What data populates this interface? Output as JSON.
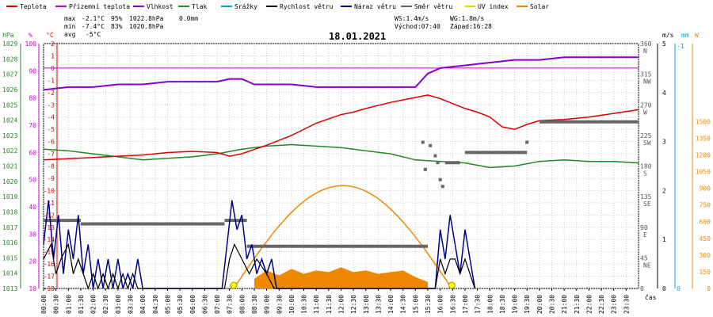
{
  "chart_data": {
    "type": "line",
    "title": "18.01.2021",
    "legend": [
      {
        "label": "Teplota",
        "color": "#dd0000"
      },
      {
        "label": "Přízemní teplota",
        "color": "#cc00cc"
      },
      {
        "label": "Vlhkost",
        "color": "#8800cc"
      },
      {
        "label": "Tlak",
        "color": "#228822"
      },
      {
        "label": "Srážky",
        "color": "#00aacc"
      },
      {
        "label": "Rychlost větru",
        "color": "#000000"
      },
      {
        "label": "Náraz větru",
        "color": "#000088"
      },
      {
        "label": "Směr větru",
        "color": "#666666"
      },
      {
        "label": "UV index",
        "color": "#dddd00"
      },
      {
        "label": "Solar",
        "color": "#ee8800"
      }
    ],
    "stats": {
      "max_label": "max",
      "max_temp": "-2.1°C",
      "max_hum": "95%",
      "max_press": "1022.8hPa",
      "max_rain": "0.0mm",
      "min_label": "min",
      "min_temp": "-7.4°C",
      "min_hum": "83%",
      "min_press": "1020.8hPa",
      "avg_label": "avg",
      "avg_temp": "-5°C",
      "ws": "WS:1.4m/s",
      "wg": "WG:1.8m/s",
      "sunrise": "Východ:07:40",
      "sunset": "Západ:16:28"
    },
    "left_axes": [
      {
        "unit": "hPa",
        "color": "#228822",
        "ticks": [
          "1029",
          "1028",
          "1027",
          "1026",
          "1025",
          "1024",
          "1023",
          "1022",
          "1021",
          "1020",
          "1019",
          "1018",
          "1017",
          "1016",
          "1015",
          "1014",
          "1013"
        ]
      },
      {
        "unit": "%",
        "color": "#cc00cc",
        "ticks": [
          "100",
          "90",
          "80",
          "70",
          "60",
          "50",
          "40",
          "30",
          "20",
          "10"
        ]
      },
      {
        "unit": "°C",
        "color": "#dd0000",
        "ticks": [
          "2",
          "1",
          "0",
          "-1",
          "-2",
          "-3",
          "-4",
          "-5",
          "-6",
          "-7",
          "-8",
          "-9",
          "-10",
          "-11",
          "-12",
          "-13",
          "-14",
          "-15",
          "-16",
          "-17",
          "-18"
        ]
      }
    ],
    "right_axes": [
      {
        "unit": "",
        "ticks": [
          "360 N",
          "315 NW",
          "270 W",
          "225 SW",
          "180 S",
          "135 SE",
          "90 E",
          "45 NE",
          "0"
        ]
      },
      {
        "unit": "m/s",
        "ticks": [
          "5",
          "4",
          "3",
          "2",
          "1",
          "0"
        ]
      },
      {
        "unit": "mm",
        "ticks": [
          "-1",
          "0"
        ]
      },
      {
        "unit": "W",
        "ticks": [
          "1500",
          "1350",
          "1200",
          "1050",
          "900",
          "750",
          "600",
          "450",
          "300",
          "150",
          "0"
        ]
      }
    ],
    "x_ticks": [
      "00:00",
      "00:30",
      "01:00",
      "01:30",
      "02:00",
      "02:30",
      "03:00",
      "03:30",
      "04:00",
      "04:30",
      "05:00",
      "05:30",
      "06:00",
      "06:30",
      "07:00",
      "07:30",
      "08:00",
      "08:30",
      "09:00",
      "09:30",
      "10:00",
      "10:30",
      "11:00",
      "11:30",
      "12:00",
      "12:30",
      "13:00",
      "13:30",
      "14:00",
      "14:30",
      "15:00",
      "15:30",
      "16:00",
      "16:30",
      "17:00",
      "17:30",
      "18:00",
      "18:30",
      "19:00",
      "19:30",
      "20:00",
      "20:30",
      "21:00",
      "21:30",
      "22:00",
      "22:30",
      "23:00",
      "23:30"
    ],
    "x_unit": "čas",
    "xlim": [
      0,
      24
    ],
    "grid": true,
    "temperature": {
      "name": "Teplota",
      "color": "#dd0000",
      "ylim": [
        -18,
        2
      ],
      "x": [
        0,
        1,
        2,
        3,
        4,
        5,
        6,
        7,
        7.5,
        8,
        9,
        10,
        11,
        12,
        12.5,
        13,
        14,
        15,
        15.5,
        16,
        16.5,
        17,
        17.5,
        18,
        18.5,
        19,
        19.5,
        20,
        21,
        22,
        23,
        24
      ],
      "y": [
        -7.5,
        -7.4,
        -7.3,
        -7.2,
        -7.1,
        -6.9,
        -6.8,
        -6.9,
        -7.2,
        -7.0,
        -6.3,
        -5.5,
        -4.5,
        -3.8,
        -3.6,
        -3.3,
        -2.8,
        -2.4,
        -2.2,
        -2.5,
        -2.9,
        -3.3,
        -3.6,
        -4.0,
        -4.8,
        -5.0,
        -4.6,
        -4.3,
        -4.2,
        -4.0,
        -3.7,
        -3.4
      ]
    },
    "ground_threshold": {
      "name": "Přízemní teplota",
      "color": "#cc00cc",
      "value_c": 0
    },
    "humidity": {
      "name": "Vlhkost",
      "color": "#8800cc",
      "ylim": [
        10,
        100
      ],
      "x": [
        0,
        1,
        2,
        3,
        4,
        5,
        6,
        7,
        7.5,
        8,
        8.5,
        9,
        10,
        11,
        12,
        13,
        14,
        15,
        15.2,
        15.5,
        16,
        17,
        18,
        19,
        20,
        21,
        22,
        23,
        24
      ],
      "y": [
        83,
        84,
        84,
        85,
        85,
        86,
        86,
        86,
        87,
        87,
        85,
        85,
        85,
        84,
        84,
        84,
        84,
        84,
        86,
        89,
        91,
        92,
        93,
        94,
        94,
        95,
        95,
        95,
        95
      ]
    },
    "pressure": {
      "name": "Tlak",
      "color": "#228822",
      "ylim": [
        1013,
        1029
      ],
      "x": [
        0,
        1,
        2,
        3,
        4,
        5,
        6,
        7,
        8,
        9,
        10,
        11,
        12,
        13,
        14,
        15,
        16,
        17,
        18,
        19,
        20,
        21,
        22,
        23,
        24
      ],
      "y": [
        1022.1,
        1022.0,
        1021.8,
        1021.6,
        1021.4,
        1021.5,
        1021.6,
        1021.8,
        1022.1,
        1022.3,
        1022.4,
        1022.3,
        1022.2,
        1022.0,
        1021.8,
        1021.4,
        1021.3,
        1021.2,
        1020.9,
        1021.0,
        1021.3,
        1021.4,
        1021.3,
        1021.3,
        1021.2
      ]
    },
    "wind_speed": {
      "name": "Rychlost větru",
      "color": "#000000",
      "ylim": [
        0,
        5
      ],
      "x": [
        0,
        0.3,
        0.5,
        0.7,
        1,
        1.2,
        1.4,
        1.6,
        1.8,
        2,
        2.2,
        2.4,
        2.6,
        2.8,
        3,
        3.2,
        3.4,
        3.6,
        3.8,
        4,
        7.3,
        7.5,
        7.7,
        8,
        8.3,
        8.6,
        9,
        9.3,
        15.8,
        16,
        16.2,
        16.4,
        16.6,
        16.8,
        17,
        17.2,
        17.4
      ],
      "y": [
        0.6,
        0.9,
        0.3,
        0.6,
        0.9,
        0.3,
        0.6,
        0.3,
        0,
        0.3,
        0,
        0.3,
        0,
        0.3,
        0,
        0.3,
        0,
        0.3,
        0,
        0,
        0,
        0.6,
        0.9,
        0.6,
        0.3,
        0.6,
        0.3,
        0,
        0,
        0.6,
        0.3,
        0.6,
        0.6,
        0.3,
        0.6,
        0.3,
        0
      ]
    },
    "wind_gust": {
      "name": "Náraz větru",
      "color": "#000088",
      "ylim": [
        0,
        5
      ],
      "x": [
        0,
        0.2,
        0.4,
        0.6,
        0.8,
        1,
        1.2,
        1.4,
        1.6,
        1.8,
        2,
        2.2,
        2.4,
        2.6,
        2.8,
        3,
        3.2,
        3.4,
        3.6,
        3.8,
        4,
        7.2,
        7.4,
        7.6,
        7.8,
        8,
        8.2,
        8.4,
        8.6,
        8.8,
        9,
        9.2,
        9.4,
        15.8,
        16,
        16.2,
        16.4,
        16.6,
        16.8,
        17,
        17.2,
        17.4
      ],
      "y": [
        0.9,
        1.8,
        0.6,
        1.5,
        0.3,
        1.2,
        0.6,
        1.5,
        0.3,
        0.9,
        0,
        0.6,
        0,
        0.6,
        0,
        0.6,
        0,
        0.3,
        0,
        0.6,
        0,
        0,
        0.9,
        1.8,
        1.2,
        1.5,
        0.6,
        0.9,
        0.3,
        0.6,
        0.3,
        0.6,
        0,
        0,
        1.2,
        0.6,
        1.5,
        0.9,
        0.3,
        1.2,
        0.6,
        0
      ]
    },
    "wind_direction": {
      "name": "Směr větru",
      "color": "#666666",
      "ylim": [
        0,
        360
      ],
      "segments": [
        {
          "x0": 0,
          "x1": 1.5,
          "y": 100
        },
        {
          "x0": 1.5,
          "x1": 7.3,
          "y": 95
        },
        {
          "x0": 7.3,
          "x1": 8.2,
          "y": 100
        },
        {
          "x0": 8.2,
          "x1": 15.5,
          "y": 62
        },
        {
          "x0": 16.2,
          "x1": 16.8,
          "y": 185
        },
        {
          "x0": 17,
          "x1": 19.5,
          "y": 200
        },
        {
          "x0": 20,
          "x1": 24,
          "y": 245
        }
      ],
      "points": [
        {
          "x": 15.3,
          "y": 215
        },
        {
          "x": 15.6,
          "y": 210
        },
        {
          "x": 15.8,
          "y": 195
        },
        {
          "x": 15.4,
          "y": 175
        },
        {
          "x": 15.9,
          "y": 185
        },
        {
          "x": 16.0,
          "y": 160
        },
        {
          "x": 16.1,
          "y": 150
        },
        {
          "x": 19.5,
          "y": 215
        }
      ]
    },
    "solar": {
      "name": "Solar",
      "color": "#ee8800",
      "ylim": [
        0,
        1500
      ],
      "sunrise": 7.67,
      "sunset": 16.47,
      "x": [
        8.5,
        9,
        9.5,
        10,
        10.5,
        11,
        11.5,
        12,
        12.5,
        13,
        13.5,
        14,
        14.5,
        15,
        15.5
      ],
      "y": [
        60,
        110,
        80,
        120,
        90,
        110,
        100,
        130,
        100,
        110,
        90,
        100,
        110,
        70,
        40
      ]
    },
    "solar_envelope_peak": 630
  }
}
